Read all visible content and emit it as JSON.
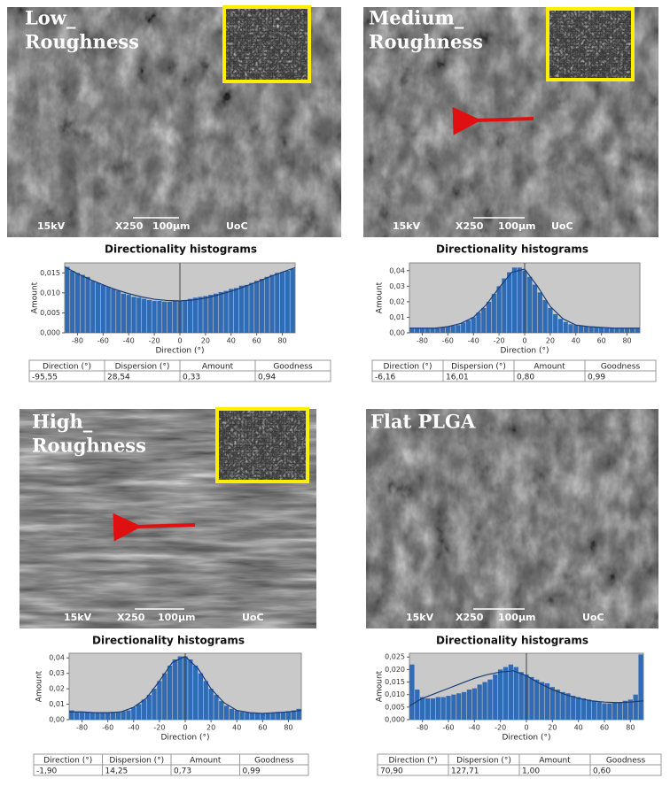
{
  "chart_data": [
    {
      "type": "histogram",
      "image_title": [
        "Low_",
        "Roughness"
      ],
      "image_scale": [
        "15kV",
        "X250",
        "100µm",
        "UoC"
      ],
      "title": "Directionality histograms",
      "x_label": "Direction (°)",
      "y_label": "Amount",
      "bins": [
        -90,
        -86,
        -82,
        -78,
        -74,
        -70,
        -66,
        -62,
        -58,
        -54,
        -50,
        -46,
        -42,
        -38,
        -34,
        -30,
        -26,
        -22,
        -18,
        -14,
        -10,
        -6,
        -2,
        2,
        6,
        10,
        14,
        18,
        22,
        26,
        30,
        34,
        38,
        42,
        46,
        50,
        54,
        58,
        62,
        66,
        70,
        74,
        78,
        82,
        86,
        90
      ],
      "values": [
        0.0165,
        0.0155,
        0.015,
        0.0145,
        0.014,
        0.013,
        0.0125,
        0.012,
        0.0115,
        0.011,
        0.0105,
        0.0098,
        0.0095,
        0.009,
        0.0088,
        0.0085,
        0.0082,
        0.008,
        0.008,
        0.0078,
        0.0078,
        0.008,
        0.008,
        0.0082,
        0.0085,
        0.0088,
        0.009,
        0.0092,
        0.0095,
        0.0098,
        0.0102,
        0.0105,
        0.011,
        0.0112,
        0.0118,
        0.012,
        0.0125,
        0.013,
        0.0135,
        0.014,
        0.0145,
        0.015,
        0.0152,
        0.0155,
        0.016
      ],
      "fit_x": [
        -90,
        -80,
        -70,
        -60,
        -50,
        -40,
        -30,
        -20,
        -10,
        0,
        10,
        20,
        30,
        40,
        50,
        60,
        70,
        80,
        90
      ],
      "fit": [
        0.0165,
        0.0148,
        0.0133,
        0.012,
        0.0108,
        0.0098,
        0.009,
        0.0084,
        0.0081,
        0.008,
        0.0082,
        0.0087,
        0.0095,
        0.0104,
        0.0115,
        0.0127,
        0.014,
        0.0152,
        0.0163
      ],
      "xlim": [
        -90,
        90
      ],
      "xticks": [
        -80,
        -60,
        -40,
        -20,
        0,
        20,
        40,
        60,
        80
      ],
      "ylim": [
        0,
        0.0175
      ],
      "yticks": [
        {
          "value": 0,
          "label": "0,000"
        },
        {
          "value": 0.005,
          "label": "0,005"
        },
        {
          "value": 0.01,
          "label": "0,010"
        },
        {
          "value": 0.015,
          "label": "0,015"
        }
      ],
      "color": "#2f6cb5",
      "fit_color": "#1b3d78",
      "table": {
        "header": [
          "Direction (°)",
          "Dispersion (°)",
          "Amount",
          "Goodness"
        ],
        "row": [
          "-95,55",
          "28,54",
          "0,33",
          "0,94"
        ]
      }
    },
    {
      "type": "histogram",
      "image_title": [
        "Medium_",
        "Roughness"
      ],
      "image_scale": [
        "15kV",
        "X250",
        "100µm",
        "UoC"
      ],
      "title": "Directionality histograms",
      "x_label": "Direction (°)",
      "y_label": "Amount",
      "bins": [
        -90,
        -86,
        -82,
        -78,
        -74,
        -70,
        -66,
        -62,
        -58,
        -54,
        -50,
        -46,
        -42,
        -38,
        -34,
        -30,
        -26,
        -22,
        -18,
        -14,
        -10,
        -6,
        -2,
        2,
        6,
        10,
        14,
        18,
        22,
        26,
        30,
        34,
        38,
        42,
        46,
        50,
        54,
        58,
        62,
        66,
        70,
        74,
        78,
        82,
        86,
        90
      ],
      "values": [
        0.003,
        0.003,
        0.003,
        0.003,
        0.003,
        0.003,
        0.0035,
        0.004,
        0.0045,
        0.005,
        0.0065,
        0.008,
        0.01,
        0.013,
        0.016,
        0.02,
        0.025,
        0.03,
        0.035,
        0.039,
        0.042,
        0.042,
        0.04,
        0.036,
        0.031,
        0.026,
        0.021,
        0.016,
        0.012,
        0.009,
        0.007,
        0.0055,
        0.005,
        0.0045,
        0.004,
        0.004,
        0.0035,
        0.0035,
        0.003,
        0.003,
        0.003,
        0.003,
        0.003,
        0.003,
        0.003
      ],
      "fit_x": [
        -90,
        -80,
        -70,
        -60,
        -50,
        -40,
        -30,
        -20,
        -10,
        0,
        10,
        20,
        30,
        40,
        50,
        60,
        70,
        80,
        90
      ],
      "fit": [
        0.003,
        0.003,
        0.003,
        0.004,
        0.006,
        0.01,
        0.018,
        0.029,
        0.039,
        0.041,
        0.03,
        0.017,
        0.009,
        0.005,
        0.004,
        0.0035,
        0.003,
        0.003,
        0.003
      ],
      "xlim": [
        -90,
        90
      ],
      "xticks": [
        -80,
        -60,
        -40,
        -20,
        0,
        20,
        40,
        60,
        80
      ],
      "ylim": [
        0,
        0.045
      ],
      "yticks": [
        {
          "value": 0,
          "label": "0,00"
        },
        {
          "value": 0.01,
          "label": "0,01"
        },
        {
          "value": 0.02,
          "label": "0,02"
        },
        {
          "value": 0.03,
          "label": "0,03"
        },
        {
          "value": 0.04,
          "label": "0,04"
        }
      ],
      "color": "#2f6cb5",
      "fit_color": "#1b3d78",
      "table": {
        "header": [
          "Direction (°)",
          "Dispersion (°)",
          "Amount",
          "Goodness"
        ],
        "row": [
          "-6,16",
          "16,01",
          "0,80",
          "0,99"
        ]
      }
    },
    {
      "type": "histogram",
      "image_title": [
        "High_",
        "Roughness"
      ],
      "image_scale": [
        "15kV",
        "X250",
        "100µm",
        "UoC"
      ],
      "title": "Directionality histograms",
      "x_label": "Direction (°)",
      "y_label": "Amount",
      "bins": [
        -90,
        -86,
        -82,
        -78,
        -74,
        -70,
        -66,
        -62,
        -58,
        -54,
        -50,
        -46,
        -42,
        -38,
        -34,
        -30,
        -26,
        -22,
        -18,
        -14,
        -10,
        -6,
        -2,
        2,
        6,
        10,
        14,
        18,
        22,
        26,
        30,
        34,
        38,
        42,
        46,
        50,
        54,
        58,
        62,
        66,
        70,
        74,
        78,
        82,
        86,
        90
      ],
      "values": [
        0.006,
        0.005,
        0.005,
        0.005,
        0.0045,
        0.0045,
        0.0045,
        0.0045,
        0.005,
        0.005,
        0.0055,
        0.006,
        0.008,
        0.01,
        0.013,
        0.016,
        0.02,
        0.025,
        0.03,
        0.035,
        0.039,
        0.041,
        0.041,
        0.039,
        0.035,
        0.03,
        0.025,
        0.02,
        0.016,
        0.012,
        0.009,
        0.007,
        0.006,
        0.005,
        0.0045,
        0.0045,
        0.004,
        0.004,
        0.004,
        0.0045,
        0.005,
        0.005,
        0.0055,
        0.006,
        0.007
      ],
      "fit_x": [
        -90,
        -80,
        -70,
        -60,
        -50,
        -40,
        -30,
        -20,
        -10,
        0,
        10,
        20,
        30,
        40,
        50,
        60,
        70,
        80,
        90
      ],
      "fit": [
        0.005,
        0.005,
        0.0045,
        0.0045,
        0.005,
        0.008,
        0.014,
        0.025,
        0.037,
        0.041,
        0.033,
        0.02,
        0.011,
        0.006,
        0.0045,
        0.004,
        0.0045,
        0.005,
        0.006
      ],
      "xlim": [
        -90,
        90
      ],
      "xticks": [
        -80,
        -60,
        -40,
        -20,
        0,
        20,
        40,
        60,
        80
      ],
      "ylim": [
        0,
        0.043
      ],
      "yticks": [
        {
          "value": 0,
          "label": "0,00"
        },
        {
          "value": 0.01,
          "label": "0,01"
        },
        {
          "value": 0.02,
          "label": "0,02"
        },
        {
          "value": 0.03,
          "label": "0,03"
        },
        {
          "value": 0.04,
          "label": "0,04"
        }
      ],
      "color": "#2f6cb5",
      "fit_color": "#1b3d78",
      "table": {
        "header": [
          "Direction (°)",
          "Dispersion (°)",
          "Amount",
          "Goodness"
        ],
        "row": [
          "-1,90",
          "14,25",
          "0,73",
          "0,99"
        ]
      }
    },
    {
      "type": "histogram",
      "image_title": [
        "Flat PLGA"
      ],
      "image_scale": [
        "15kV",
        "X250",
        "100µm",
        "UoC"
      ],
      "title": "Directionality histograms",
      "x_label": "Direction (°)",
      "y_label": "Amount",
      "bins": [
        -90,
        -86,
        -82,
        -78,
        -74,
        -70,
        -66,
        -62,
        -58,
        -54,
        -50,
        -46,
        -42,
        -38,
        -34,
        -30,
        -26,
        -22,
        -18,
        -14,
        -10,
        -6,
        -2,
        2,
        6,
        10,
        14,
        18,
        22,
        26,
        30,
        34,
        38,
        42,
        46,
        50,
        54,
        58,
        62,
        66,
        70,
        74,
        78,
        82,
        86,
        90
      ],
      "values": [
        0.022,
        0.012,
        0.009,
        0.0085,
        0.0085,
        0.009,
        0.009,
        0.0095,
        0.01,
        0.0105,
        0.011,
        0.012,
        0.0125,
        0.014,
        0.015,
        0.016,
        0.018,
        0.02,
        0.021,
        0.022,
        0.021,
        0.019,
        0.018,
        0.017,
        0.016,
        0.015,
        0.0145,
        0.013,
        0.012,
        0.011,
        0.0105,
        0.0095,
        0.009,
        0.0085,
        0.008,
        0.0075,
        0.007,
        0.0065,
        0.0065,
        0.007,
        0.007,
        0.0075,
        0.008,
        0.01,
        0.026
      ],
      "fit_x": [
        -90,
        -80,
        -70,
        -60,
        -50,
        -40,
        -30,
        -20,
        -10,
        0,
        10,
        20,
        30,
        40,
        50,
        60,
        70,
        80,
        90
      ],
      "fit": [
        0.0055,
        0.0085,
        0.0105,
        0.0125,
        0.0145,
        0.0165,
        0.018,
        0.019,
        0.0195,
        0.0175,
        0.0145,
        0.012,
        0.01,
        0.0085,
        0.0075,
        0.007,
        0.0068,
        0.007,
        0.0075
      ],
      "xlim": [
        -90,
        90
      ],
      "xticks": [
        -80,
        -60,
        -40,
        -20,
        0,
        20,
        40,
        60,
        80
      ],
      "ylim": [
        0,
        0.0265
      ],
      "yticks": [
        {
          "value": 0,
          "label": "0,000"
        },
        {
          "value": 0.005,
          "label": "0,005"
        },
        {
          "value": 0.01,
          "label": "0,010"
        },
        {
          "value": 0.015,
          "label": "0,015"
        },
        {
          "value": 0.02,
          "label": "0,020"
        },
        {
          "value": 0.025,
          "label": "0,025"
        }
      ],
      "color": "#2f6cb5",
      "fit_color": "#1b3d78",
      "table": {
        "header": [
          "Direction (°)",
          "Dispersion (°)",
          "Amount",
          "Goodness"
        ],
        "row": [
          "70,90",
          "127,71",
          "1,00",
          "0,60"
        ]
      }
    }
  ]
}
